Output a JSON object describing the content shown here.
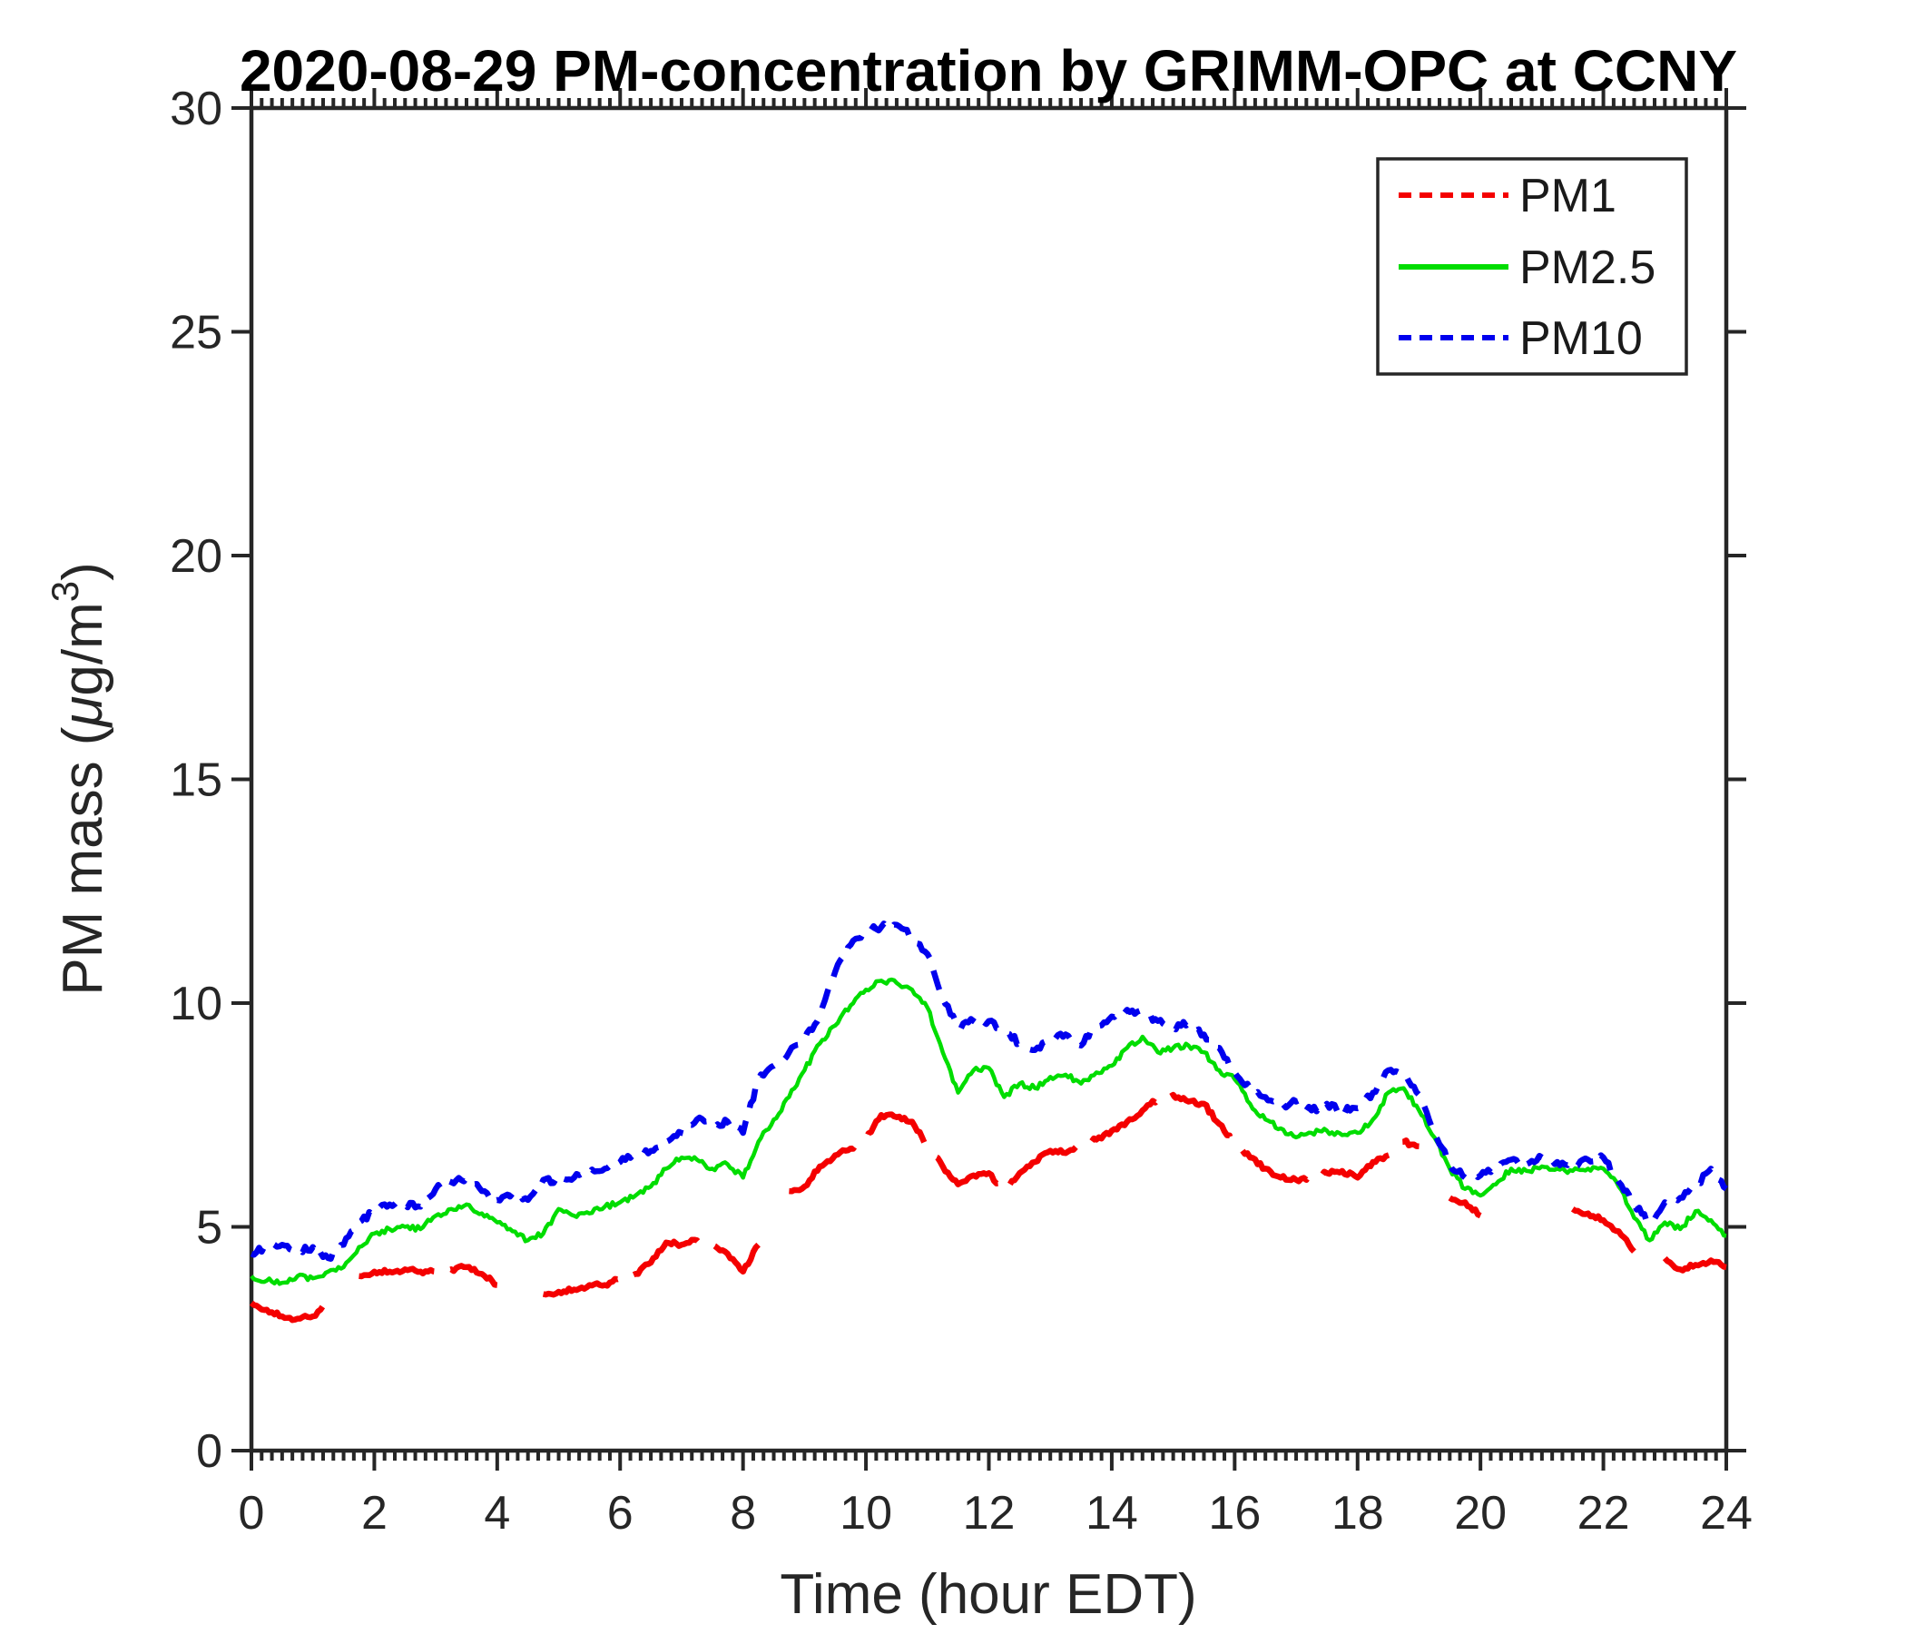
{
  "title": "2020-08-29 PM-concentration by GRIMM-OPC at CCNY",
  "axes": {
    "xlabel": "Time (hour EDT)",
    "ylabel_pre": "PM mass (",
    "ylabel_mu": "μ",
    "ylabel_mid": "g/m",
    "ylabel_sup": "3",
    "ylabel_post": ")",
    "x_tick_labels": [
      "0",
      "2",
      "4",
      "6",
      "8",
      "10",
      "12",
      "14",
      "16",
      "18",
      "20",
      "22",
      "24"
    ],
    "y_tick_labels": [
      "0",
      "5",
      "10",
      "15",
      "20",
      "25",
      "30"
    ]
  },
  "legend": {
    "entries": [
      {
        "label": "PM1",
        "color": "#f40000",
        "style": "dashed"
      },
      {
        "label": "PM2.5",
        "color": "#00dd00",
        "style": "solid"
      },
      {
        "label": "PM10",
        "color": "#0000ee",
        "style": "dashed"
      }
    ]
  },
  "chart_data": {
    "type": "line",
    "title": "2020-08-29 PM-concentration by GRIMM-OPC at CCNY",
    "xlabel": "Time (hour EDT)",
    "ylabel": "PM mass (µg/m³)",
    "xlim": [
      0,
      24
    ],
    "ylim": [
      0,
      30
    ],
    "x_ticks": [
      0,
      2,
      4,
      6,
      8,
      10,
      12,
      14,
      16,
      18,
      20,
      22,
      24
    ],
    "y_ticks": [
      0,
      5,
      10,
      15,
      20,
      25,
      30
    ],
    "grid": false,
    "legend_position": "top-right",
    "x": [
      0,
      0.25,
      0.5,
      0.75,
      1,
      1.25,
      1.5,
      1.75,
      2,
      2.25,
      2.5,
      2.75,
      3,
      3.25,
      3.5,
      3.75,
      4,
      4.25,
      4.5,
      4.75,
      5,
      5.25,
      5.5,
      5.75,
      6,
      6.25,
      6.5,
      6.75,
      7,
      7.25,
      7.5,
      7.75,
      8,
      8.25,
      8.5,
      8.75,
      9,
      9.25,
      9.5,
      9.75,
      10,
      10.25,
      10.5,
      10.75,
      11,
      11.25,
      11.5,
      11.75,
      12,
      12.25,
      12.5,
      12.75,
      13,
      13.25,
      13.5,
      13.75,
      14,
      14.25,
      14.5,
      14.75,
      15,
      15.25,
      15.5,
      15.75,
      16,
      16.25,
      16.5,
      16.75,
      17,
      17.25,
      17.5,
      17.75,
      18,
      18.25,
      18.5,
      18.75,
      19,
      19.25,
      19.5,
      19.75,
      20,
      20.25,
      20.5,
      20.75,
      21,
      21.25,
      21.5,
      21.75,
      22,
      22.25,
      22.5,
      22.75,
      23,
      23.25,
      23.5,
      23.75,
      24
    ],
    "series": [
      {
        "name": "PM1",
        "color": "#f40000",
        "style": "dashed",
        "dash": [
          95,
          22
        ],
        "width": 6.5,
        "jitter": 0.05,
        "values": [
          3.3,
          3.15,
          3.0,
          2.95,
          3.0,
          3.3,
          null,
          3.9,
          4.0,
          4.0,
          4.05,
          4.0,
          4.0,
          4.05,
          4.1,
          3.95,
          3.7,
          null,
          null,
          3.5,
          3.55,
          3.6,
          3.7,
          3.7,
          3.85,
          3.95,
          4.2,
          4.65,
          4.6,
          4.7,
          4.6,
          4.4,
          4.0,
          4.6,
          null,
          5.8,
          5.9,
          6.35,
          6.6,
          6.75,
          6.95,
          7.5,
          7.45,
          7.35,
          6.8,
          6.35,
          5.95,
          6.15,
          6.2,
          5.8,
          6.2,
          6.45,
          6.7,
          6.65,
          6.8,
          6.95,
          7.15,
          7.35,
          7.6,
          7.85,
          7.95,
          7.8,
          7.75,
          7.3,
          6.85,
          6.55,
          6.3,
          6.1,
          6.05,
          6.1,
          6.2,
          6.25,
          6.1,
          6.45,
          6.6,
          6.9,
          6.8,
          null,
          5.65,
          5.55,
          5.25,
          null,
          null,
          null,
          null,
          null,
          5.4,
          5.3,
          5.15,
          4.9,
          4.45,
          null,
          4.3,
          4.05,
          4.15,
          4.25,
          4.1
        ]
      },
      {
        "name": "PM2.5",
        "color": "#00dd00",
        "style": "solid",
        "dash": null,
        "width": 4.5,
        "jitter": 0.06,
        "values": [
          3.9,
          3.8,
          3.75,
          3.9,
          3.85,
          4.0,
          4.1,
          4.55,
          4.85,
          4.95,
          5.0,
          4.95,
          5.25,
          5.4,
          5.5,
          5.3,
          5.1,
          4.9,
          4.7,
          4.85,
          5.4,
          5.25,
          5.3,
          5.45,
          5.55,
          5.7,
          5.9,
          6.3,
          6.55,
          6.5,
          6.3,
          6.4,
          6.1,
          6.9,
          7.4,
          7.9,
          8.5,
          9.1,
          9.5,
          9.95,
          10.3,
          10.5,
          10.45,
          10.3,
          9.9,
          8.9,
          8.0,
          8.5,
          8.55,
          7.9,
          8.2,
          8.1,
          8.35,
          8.4,
          8.2,
          8.45,
          8.6,
          9.0,
          9.25,
          8.9,
          9.0,
          9.05,
          8.9,
          8.5,
          8.3,
          7.75,
          7.4,
          7.2,
          7.0,
          7.1,
          7.15,
          7.05,
          7.1,
          7.4,
          8.0,
          8.1,
          7.6,
          7.0,
          6.3,
          5.85,
          5.7,
          5.95,
          6.3,
          6.25,
          6.35,
          6.3,
          6.25,
          6.3,
          6.3,
          5.9,
          5.2,
          4.7,
          5.1,
          4.95,
          5.35,
          5.15,
          4.8
        ]
      },
      {
        "name": "PM10",
        "color": "#0000ee",
        "style": "dashed",
        "dash": [
          22,
          15
        ],
        "width": 6.5,
        "jitter": 0.07,
        "values": [
          4.4,
          4.55,
          4.6,
          4.45,
          4.55,
          4.3,
          4.6,
          5.1,
          5.35,
          5.5,
          5.5,
          5.45,
          5.85,
          6.0,
          6.1,
          5.8,
          5.6,
          5.75,
          5.6,
          6.05,
          6.0,
          6.1,
          6.2,
          6.3,
          6.45,
          6.6,
          6.7,
          6.9,
          7.1,
          7.4,
          7.25,
          7.35,
          7.1,
          8.3,
          8.6,
          8.9,
          9.2,
          9.7,
          10.7,
          11.3,
          11.6,
          11.7,
          11.75,
          11.5,
          11.1,
          10.1,
          9.45,
          9.6,
          9.6,
          9.4,
          9.1,
          8.95,
          9.2,
          9.3,
          9.05,
          9.5,
          9.7,
          9.85,
          9.8,
          9.6,
          9.45,
          9.55,
          9.3,
          9.0,
          8.45,
          8.1,
          7.9,
          7.7,
          7.8,
          7.6,
          7.75,
          7.6,
          7.65,
          8.0,
          8.5,
          8.4,
          7.95,
          7.1,
          6.4,
          6.1,
          6.15,
          6.3,
          6.5,
          6.4,
          6.55,
          6.45,
          6.4,
          6.5,
          6.55,
          6.0,
          5.5,
          5.1,
          5.55,
          5.65,
          5.9,
          6.3,
          5.85
        ]
      }
    ]
  }
}
